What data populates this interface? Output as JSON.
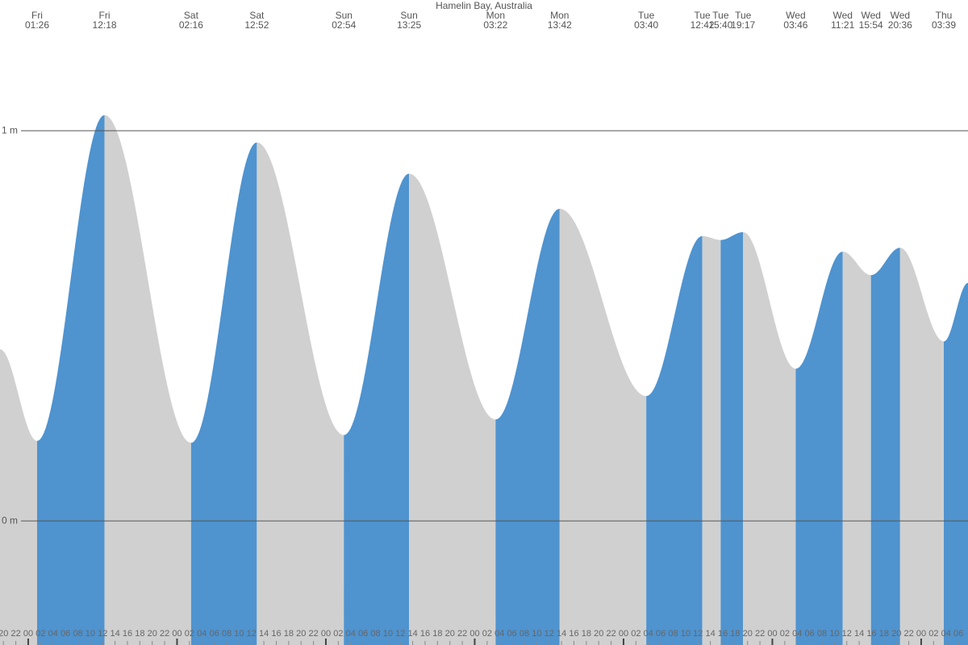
{
  "chart_data": {
    "type": "tide",
    "title": "Hamelin Bay, Australia",
    "days": [
      "Fri",
      "Fri",
      "Sat",
      "Sat",
      "Sun",
      "Sun",
      "Mon",
      "Mon",
      "Tue",
      "Tue",
      "Tue",
      "Tue",
      "Wed",
      "Wed",
      "Wed",
      "Wed",
      "Thu"
    ],
    "times": [
      "01:26",
      "12:18",
      "02:16",
      "12:52",
      "02:54",
      "13:25",
      "03:22",
      "13:42",
      "03:40",
      "12:42",
      "15:40",
      "19:17",
      "03:46",
      "11:21",
      "15:54",
      "20:36",
      "03:39"
    ],
    "x": [
      1.433,
      12.3,
      26.267,
      36.867,
      50.9,
      61.417,
      75.367,
      85.7,
      99.667,
      108.7,
      111.667,
      115.283,
      123.767,
      131.35,
      135.9,
      140.6,
      147.65
    ],
    "values": [
      0.205,
      1.04,
      0.2,
      0.97,
      0.22,
      0.89,
      0.26,
      0.8,
      0.32,
      0.73,
      0.72,
      0.74,
      0.39,
      0.69,
      0.63,
      0.7,
      0.46
    ],
    "edge_values": [
      0.44,
      0.61
    ],
    "rising_color": "#4f93cf",
    "falling_color": "#d0d0d0",
    "xlim": [
      -4.55,
      151.55
    ],
    "ylim": [
      -0.318,
      1.335
    ],
    "yticks": [
      {
        "value": 0,
        "label": "0 m"
      },
      {
        "value": 1,
        "label": "1 m"
      }
    ],
    "xticks": [
      {
        "value": -4,
        "label": "20"
      },
      {
        "value": -2,
        "label": "22"
      },
      {
        "value": 0,
        "label": "00"
      },
      {
        "value": 2,
        "label": "02"
      },
      {
        "value": 4,
        "label": "04"
      },
      {
        "value": 6,
        "label": "06"
      },
      {
        "value": 8,
        "label": "08"
      },
      {
        "value": 10,
        "label": "10"
      },
      {
        "value": 12,
        "label": "12"
      },
      {
        "value": 14,
        "label": "14"
      },
      {
        "value": 16,
        "label": "16"
      },
      {
        "value": 18,
        "label": "18"
      },
      {
        "value": 20,
        "label": "20"
      },
      {
        "value": 22,
        "label": "22"
      },
      {
        "value": 24,
        "label": "00"
      },
      {
        "value": 26,
        "label": "02"
      },
      {
        "value": 28,
        "label": "04"
      },
      {
        "value": 30,
        "label": "06"
      },
      {
        "value": 32,
        "label": "08"
      },
      {
        "value": 34,
        "label": "10"
      },
      {
        "value": 36,
        "label": "12"
      },
      {
        "value": 38,
        "label": "14"
      },
      {
        "value": 40,
        "label": "16"
      },
      {
        "value": 42,
        "label": "18"
      },
      {
        "value": 44,
        "label": "20"
      },
      {
        "value": 46,
        "label": "22"
      },
      {
        "value": 48,
        "label": "00"
      },
      {
        "value": 50,
        "label": "02"
      },
      {
        "value": 52,
        "label": "04"
      },
      {
        "value": 54,
        "label": "06"
      },
      {
        "value": 56,
        "label": "08"
      },
      {
        "value": 58,
        "label": "10"
      },
      {
        "value": 60,
        "label": "12"
      },
      {
        "value": 62,
        "label": "14"
      },
      {
        "value": 64,
        "label": "16"
      },
      {
        "value": 66,
        "label": "18"
      },
      {
        "value": 68,
        "label": "20"
      },
      {
        "value": 70,
        "label": "22"
      },
      {
        "value": 72,
        "label": "00"
      },
      {
        "value": 74,
        "label": "02"
      },
      {
        "value": 76,
        "label": "04"
      },
      {
        "value": 78,
        "label": "06"
      },
      {
        "value": 80,
        "label": "08"
      },
      {
        "value": 82,
        "label": "10"
      },
      {
        "value": 84,
        "label": "12"
      },
      {
        "value": 86,
        "label": "14"
      },
      {
        "value": 88,
        "label": "16"
      },
      {
        "value": 90,
        "label": "18"
      },
      {
        "value": 92,
        "label": "20"
      },
      {
        "value": 94,
        "label": "22"
      },
      {
        "value": 96,
        "label": "00"
      },
      {
        "value": 98,
        "label": "02"
      },
      {
        "value": 100,
        "label": "04"
      },
      {
        "value": 102,
        "label": "06"
      },
      {
        "value": 104,
        "label": "08"
      },
      {
        "value": 106,
        "label": "10"
      },
      {
        "value": 108,
        "label": "12"
      },
      {
        "value": 110,
        "label": "14"
      },
      {
        "value": 112,
        "label": "16"
      },
      {
        "value": 114,
        "label": "18"
      },
      {
        "value": 116,
        "label": "20"
      },
      {
        "value": 118,
        "label": "22"
      },
      {
        "value": 120,
        "label": "00"
      },
      {
        "value": 122,
        "label": "02"
      },
      {
        "value": 124,
        "label": "04"
      },
      {
        "value": 126,
        "label": "06"
      },
      {
        "value": 128,
        "label": "08"
      },
      {
        "value": 130,
        "label": "10"
      },
      {
        "value": 132,
        "label": "12"
      },
      {
        "value": 134,
        "label": "14"
      },
      {
        "value": 136,
        "label": "16"
      },
      {
        "value": 138,
        "label": "18"
      },
      {
        "value": 140,
        "label": "20"
      },
      {
        "value": 142,
        "label": "22"
      },
      {
        "value": 144,
        "label": "00"
      },
      {
        "value": 146,
        "label": "02"
      },
      {
        "value": 148,
        "label": "04"
      },
      {
        "value": 150,
        "label": "06"
      }
    ],
    "grid": true
  }
}
